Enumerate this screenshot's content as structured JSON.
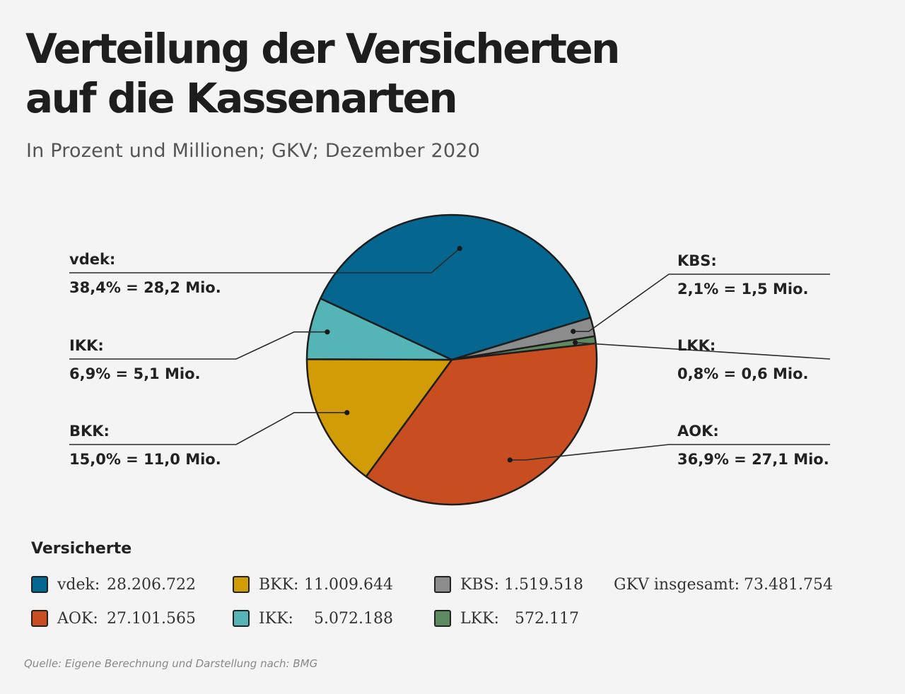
{
  "title_line1": "Verteilung der Versicherten",
  "title_line2": "auf die Kassenarten",
  "subtitle": "In Prozent und Millionen; GKV; Dezember 2020",
  "chart_data": {
    "type": "pie",
    "title": "Verteilung der Versicherten auf die Kassenarten",
    "subtitle": "In Prozent und Millionen; GKV; Dezember 2020",
    "slices": [
      {
        "key": "vdek",
        "name": "vdek:",
        "percent": 38.4,
        "value_text": "38,4% = 28,2 Mio.",
        "color": "#05678f"
      },
      {
        "key": "kbs",
        "name": "KBS:",
        "percent": 2.1,
        "value_text": "2,1% = 1,5 Mio.",
        "color": "#8c8c8c"
      },
      {
        "key": "lkk",
        "name": "LKK:",
        "percent": 0.8,
        "value_text": "0,8% = 0,6 Mio.",
        "color": "#5e8a62"
      },
      {
        "key": "aok",
        "name": "AOK:",
        "percent": 36.9,
        "value_text": "36,9% = 27,1 Mio.",
        "color": "#c84e22"
      },
      {
        "key": "bkk",
        "name": "BKK:",
        "percent": 15.0,
        "value_text": "15,0% = 11,0 Mio.",
        "color": "#d19c06"
      },
      {
        "key": "ikk",
        "name": "IKK:",
        "percent": 6.9,
        "value_text": "6,9% = 5,1 Mio.",
        "color": "#55b5b6"
      }
    ]
  },
  "legend": {
    "title": "Versicherte",
    "items": [
      {
        "name": "vdek:",
        "value": "28.206.722",
        "color": "#05678f"
      },
      {
        "name": "AOK:",
        "value": "27.101.565",
        "color": "#c84e22"
      },
      {
        "name": "BKK:",
        "value": "11.009.644",
        "color": "#d19c06"
      },
      {
        "name": "IKK:",
        "value": "5.072.188",
        "color": "#55b5b6"
      },
      {
        "name": "KBS:",
        "value": "1.519.518",
        "color": "#8c8c8c"
      },
      {
        "name": "LKK:",
        "value": "572.117",
        "color": "#5e8a62"
      }
    ],
    "total_label": "GKV insgesamt:",
    "total_value": "73.481.754"
  },
  "source": "Quelle: Eigene Berechnung und Darstellung nach: BMG"
}
